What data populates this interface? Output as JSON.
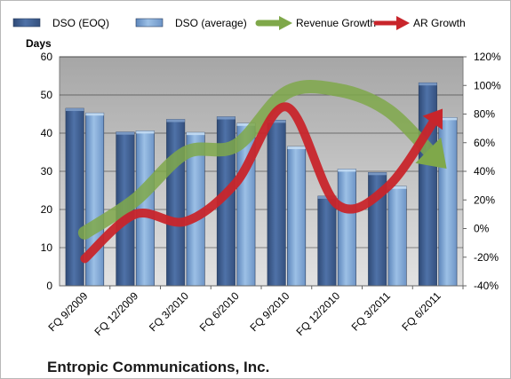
{
  "chart_data": {
    "type": "bar",
    "title": "Entropic Communications, Inc.",
    "ylabel": "Days",
    "ylim": [
      0,
      60
    ],
    "y_ticks": [
      0,
      10,
      20,
      30,
      40,
      50,
      60
    ],
    "y2lim": [
      -40,
      120
    ],
    "y2_ticks": [
      "-40%",
      "-20%",
      "0%",
      "20%",
      "40%",
      "60%",
      "80%",
      "100%",
      "120%"
    ],
    "categories": [
      "FQ 9/2009",
      "FQ 12/2009",
      "FQ 3/2010",
      "FQ 6/2010",
      "FQ 9/2010",
      "FQ 12/2010",
      "FQ 3/2011",
      "FQ 6/2011"
    ],
    "series": [
      {
        "name": "DSO (EOQ)",
        "type": "bar",
        "axis": "left",
        "color": "#3f5d8c",
        "values": [
          46.5,
          40.3,
          43.6,
          44.3,
          43.4,
          23.5,
          29.7,
          53.2
        ]
      },
      {
        "name": "DSO (average)",
        "type": "bar",
        "axis": "left",
        "color": "#7ea8d6",
        "values": [
          45.3,
          40.6,
          40.2,
          42.6,
          36.5,
          30.6,
          26.1,
          44.1
        ]
      },
      {
        "name": "Revenue Growth",
        "type": "line",
        "axis": "right",
        "unit": "%",
        "color": "#7fa84a",
        "values": [
          -3,
          20,
          53,
          58,
          95,
          97,
          83,
          48
        ]
      },
      {
        "name": "AR Growth",
        "type": "line",
        "axis": "right",
        "unit": "%",
        "color": "#c8252b",
        "values": [
          -21,
          10,
          5,
          32,
          85,
          17,
          29,
          79
        ]
      }
    ],
    "legend_position": "top",
    "grid": true,
    "plot_background": "#c0c0c0"
  }
}
